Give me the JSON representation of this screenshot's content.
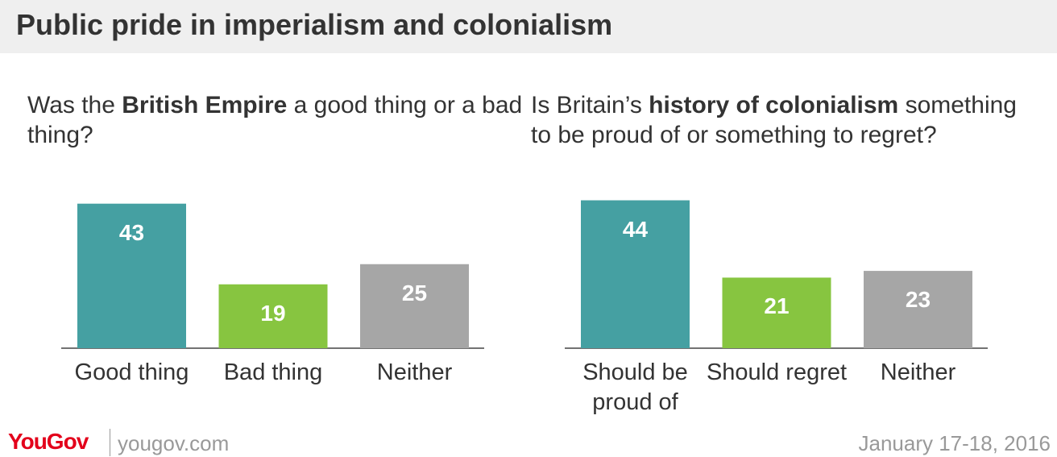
{
  "title": "Public pride in imperialism and colonialism",
  "chart_data": [
    {
      "type": "bar",
      "subtitle": [
        {
          "text": "Was the ",
          "bold": false
        },
        {
          "text": "British Empire",
          "bold": true
        },
        {
          "text": " a good thing or a bad thing?",
          "bold": false
        }
      ],
      "categories": [
        "Good thing",
        "Bad thing",
        "Neither"
      ],
      "values": [
        43,
        19,
        25
      ],
      "colors": [
        "#45a0a2",
        "#87c540",
        "#a6a6a6"
      ]
    },
    {
      "type": "bar",
      "subtitle": [
        {
          "text": "Is Britain’s ",
          "bold": false
        },
        {
          "text": "history of colonialism",
          "bold": true
        },
        {
          "text": " something to be proud of or something to regret?",
          "bold": false
        }
      ],
      "categories": [
        "Should be proud of",
        "Should regret",
        "Neither"
      ],
      "values": [
        44,
        21,
        23
      ],
      "colors": [
        "#45a0a2",
        "#87c540",
        "#a6a6a6"
      ]
    }
  ],
  "footer": {
    "brand": "YouGov",
    "site": "yougov.com",
    "date": "January 17-18, 2016"
  }
}
